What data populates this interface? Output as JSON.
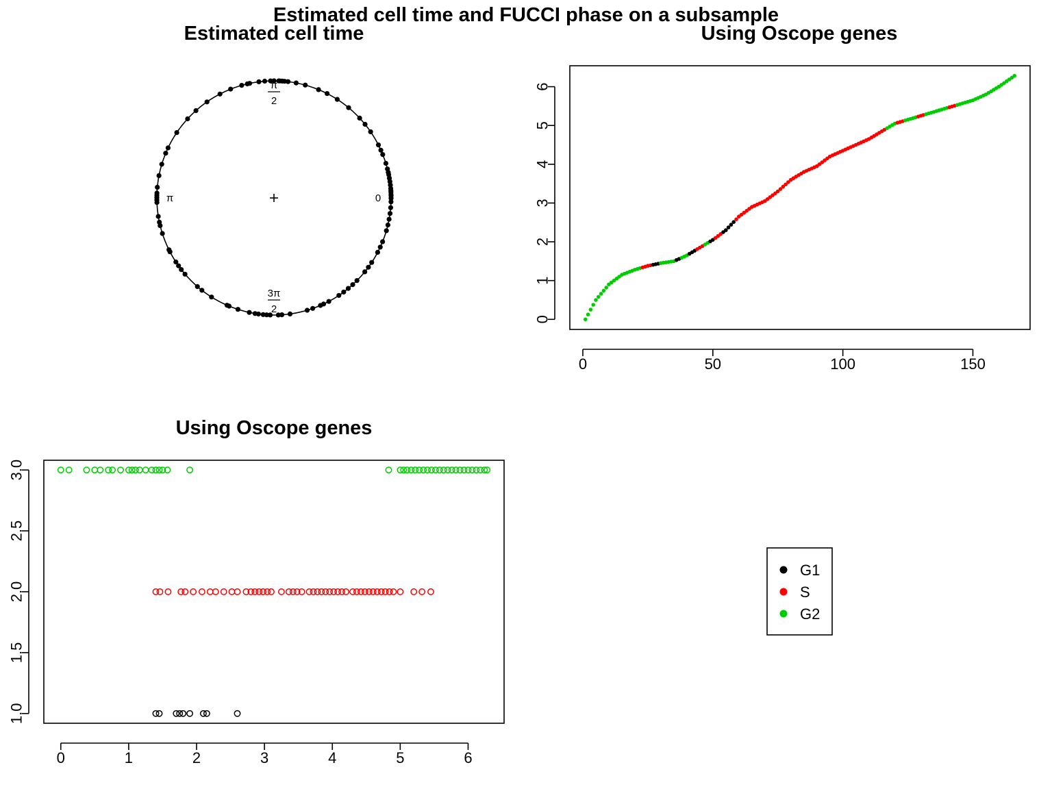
{
  "figure": {
    "title": "Estimated cell time and FUCCI phase on a subsample"
  },
  "colors": {
    "G1": "#000000",
    "S": "#ff0000",
    "G2": "#00cd00",
    "axis": "#000000"
  },
  "legend": {
    "position": "center-right",
    "items": [
      {
        "label": "G1",
        "color": "#000000"
      },
      {
        "label": "S",
        "color": "#ff0000"
      },
      {
        "label": "G2",
        "color": "#00cd00"
      }
    ]
  },
  "chart_data": [
    {
      "id": "circular",
      "type": "scatter",
      "title": "Estimated cell time",
      "coordinate": "polar",
      "angle_labels": [
        {
          "angle": 0,
          "label": "0"
        },
        {
          "angle": 1.5708,
          "label": "π\n2"
        },
        {
          "angle": 3.1416,
          "label": "π"
        },
        {
          "angle": 4.7124,
          "label": "3π\n2"
        }
      ],
      "center_marker": "+",
      "angles": [
        0.0,
        0.02,
        0.03,
        0.05,
        0.06,
        0.08,
        0.11,
        0.14,
        0.17,
        0.2,
        0.22,
        0.25,
        0.3,
        0.38,
        0.42,
        0.47,
        0.6,
        0.68,
        0.75,
        0.88,
        1.0,
        1.1,
        1.18,
        1.3,
        1.38,
        1.45,
        1.48,
        1.5,
        1.52,
        1.53,
        1.57,
        1.6,
        1.65,
        1.7,
        1.78,
        1.8,
        1.85,
        1.95,
        2.05,
        2.18,
        2.3,
        2.4,
        2.55,
        2.7,
        2.75,
        2.85,
        2.95,
        3.05,
        3.1,
        3.12,
        3.14,
        3.16,
        3.18,
        3.3,
        3.35,
        3.38,
        3.45,
        3.6,
        3.62,
        3.72,
        3.76,
        3.8,
        3.85,
        4.0,
        4.05,
        4.15,
        4.3,
        4.32,
        4.4,
        4.5,
        4.55,
        4.58,
        4.62,
        4.65,
        4.68,
        4.75,
        4.78,
        4.85,
        5.0,
        5.05,
        5.12,
        5.15,
        5.2,
        5.3,
        5.35,
        5.4,
        5.45,
        5.5,
        5.6,
        5.65,
        5.7,
        5.8,
        5.85,
        5.9,
        6.0,
        6.05,
        6.1,
        6.15,
        6.2,
        6.25,
        6.28
      ]
    },
    {
      "id": "ordered",
      "type": "scatter",
      "title": "Using Oscope genes",
      "xlabel": "",
      "ylabel": "",
      "xlim": [
        -5,
        172
      ],
      "ylim": [
        -0.26,
        6.54
      ],
      "xticks": [
        0,
        50,
        100,
        150
      ],
      "yticks": [
        0,
        1,
        2,
        3,
        4,
        5,
        6
      ],
      "curve": {
        "n": 166,
        "x": [
          1,
          5,
          10,
          15,
          20,
          25,
          30,
          35,
          40,
          45,
          50,
          55,
          60,
          65,
          70,
          75,
          80,
          85,
          90,
          95,
          100,
          105,
          110,
          115,
          120,
          125,
          130,
          135,
          140,
          145,
          150,
          155,
          160,
          166
        ],
        "y": [
          0.0,
          0.5,
          0.9,
          1.15,
          1.28,
          1.38,
          1.45,
          1.5,
          1.65,
          1.85,
          2.05,
          2.3,
          2.65,
          2.9,
          3.05,
          3.3,
          3.6,
          3.8,
          3.95,
          4.2,
          4.35,
          4.5,
          4.65,
          4.85,
          5.05,
          5.15,
          5.25,
          5.35,
          5.45,
          5.55,
          5.65,
          5.8,
          6.0,
          6.28
        ]
      },
      "phase_segments": [
        {
          "from": 1,
          "to": 22,
          "phase": "G2"
        },
        {
          "from": 23,
          "to": 26,
          "phase": "S"
        },
        {
          "from": 27,
          "to": 29,
          "phase": "G1"
        },
        {
          "from": 30,
          "to": 35,
          "phase": "G2"
        },
        {
          "from": 36,
          "to": 37,
          "phase": "G1"
        },
        {
          "from": 38,
          "to": 40,
          "phase": "G2"
        },
        {
          "from": 41,
          "to": 43,
          "phase": "G1"
        },
        {
          "from": 44,
          "to": 46,
          "phase": "S"
        },
        {
          "from": 47,
          "to": 48,
          "phase": "G2"
        },
        {
          "from": 49,
          "to": 50,
          "phase": "G1"
        },
        {
          "from": 51,
          "to": 53,
          "phase": "S"
        },
        {
          "from": 54,
          "to": 58,
          "phase": "G1"
        },
        {
          "from": 59,
          "to": 116,
          "phase": "S"
        },
        {
          "from": 117,
          "to": 120,
          "phase": "G2"
        },
        {
          "from": 121,
          "to": 123,
          "phase": "S"
        },
        {
          "from": 124,
          "to": 128,
          "phase": "G2"
        },
        {
          "from": 129,
          "to": 131,
          "phase": "S"
        },
        {
          "from": 132,
          "to": 140,
          "phase": "G2"
        },
        {
          "from": 141,
          "to": 143,
          "phase": "S"
        },
        {
          "from": 144,
          "to": 166,
          "phase": "G2"
        }
      ]
    },
    {
      "id": "phase-vs-time",
      "type": "scatter",
      "title": "Using Oscope genes",
      "xlabel": "",
      "ylabel": "",
      "marker": "open-circle",
      "xlim": [
        -0.25,
        6.53
      ],
      "ylim": [
        0.92,
        3.08
      ],
      "xticks": [
        0,
        1,
        2,
        3,
        4,
        5,
        6
      ],
      "yticks": [
        "1.0",
        "1.5",
        "2.0",
        "2.5",
        "3.0"
      ],
      "series": [
        {
          "name": "G1",
          "y": 1,
          "x": [
            1.4,
            1.45,
            1.7,
            1.75,
            1.8,
            1.9,
            2.1,
            2.15,
            2.6
          ]
        },
        {
          "name": "S",
          "y": 2,
          "x": [
            1.4,
            1.46,
            1.58,
            1.77,
            1.83,
            1.95,
            2.08,
            2.2,
            2.28,
            2.4,
            2.52,
            2.6,
            2.73,
            2.8,
            2.86,
            2.92,
            2.98,
            3.04,
            3.1,
            3.25,
            3.36,
            3.42,
            3.48,
            3.55,
            3.66,
            3.72,
            3.78,
            3.84,
            3.9,
            3.96,
            4.02,
            4.08,
            4.14,
            4.2,
            4.3,
            4.36,
            4.42,
            4.48,
            4.54,
            4.6,
            4.66,
            4.72,
            4.78,
            4.84,
            4.9,
            5.0,
            5.2,
            5.32,
            5.45
          ]
        },
        {
          "name": "G2",
          "y": 3,
          "x": [
            0.0,
            0.12,
            0.38,
            0.5,
            0.58,
            0.7,
            0.76,
            0.88,
            1.0,
            1.05,
            1.1,
            1.16,
            1.25,
            1.34,
            1.4,
            1.45,
            1.5,
            1.57,
            1.9,
            4.83,
            5.0,
            5.05,
            5.1,
            5.16,
            5.22,
            5.28,
            5.34,
            5.4,
            5.46,
            5.52,
            5.58,
            5.64,
            5.7,
            5.76,
            5.82,
            5.88,
            5.94,
            6.0,
            6.06,
            6.12,
            6.18,
            6.24,
            6.28
          ]
        }
      ]
    }
  ]
}
